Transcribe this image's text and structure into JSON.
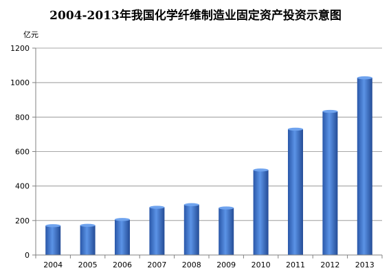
{
  "chart_data": {
    "type": "bar",
    "title": "2004-2013年我国化学纤维制造业固定资产投资示意图",
    "ylabel": "亿元",
    "xlabel": "",
    "categories": [
      "2004",
      "2005",
      "2006",
      "2007",
      "2008",
      "2009",
      "2010",
      "2011",
      "2012",
      "2013"
    ],
    "values": [
      170,
      172,
      206,
      277,
      292,
      273,
      493,
      730,
      833,
      1028
    ],
    "ylim": [
      0,
      1200
    ],
    "yticks": [
      0,
      200,
      400,
      600,
      800,
      1000,
      1200
    ],
    "grid": true,
    "legend": "none",
    "bar_color": "#3a6fc4"
  }
}
